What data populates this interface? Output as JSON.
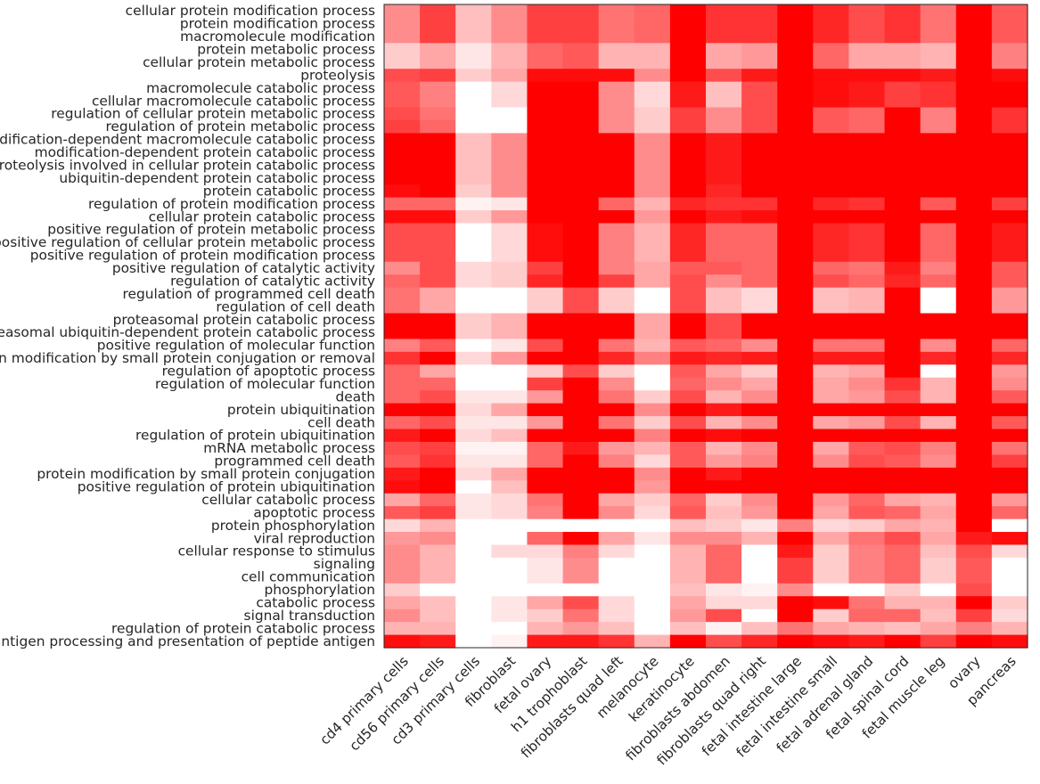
{
  "chart_data": {
    "type": "heatmap",
    "color_scale": {
      "low": "#ffffff",
      "high": "#ff0000"
    },
    "value_range": [
      0,
      1
    ],
    "grid": false,
    "columns": [
      "cd4 primary cells",
      "cd56 primary cells",
      "cd3 primary cells",
      "fibroblast",
      "fetal ovary",
      "h1 trophoblast",
      "fibroblasts quad left",
      "melanocyte",
      "keratinocyte",
      "fibroblasts abdomen",
      "fibroblasts quad right",
      "fetal intestine large",
      "fetal intestine small",
      "fetal adrenal gland",
      "fetal spinal cord",
      "fetal muscle leg",
      "ovary",
      "pancreas"
    ],
    "rows": [
      "cellular protein modification process",
      "protein modification process",
      "macromolecule modification",
      "protein metabolic process",
      "cellular protein metabolic process",
      "proteolysis",
      "macromolecule catabolic process",
      "cellular macromolecule catabolic process",
      "regulation of cellular protein metabolic process",
      "regulation of protein metabolic process",
      "modification-dependent macromolecule catabolic process",
      "modification-dependent protein catabolic process",
      "proteolysis involved in cellular protein catabolic process",
      "ubiquitin-dependent protein catabolic process",
      "protein catabolic process",
      "regulation of protein modification process",
      "cellular protein catabolic process",
      "positive regulation of protein metabolic process",
      "positive regulation of cellular protein metabolic process",
      "positive regulation of protein modification process",
      "positive regulation of catalytic activity",
      "regulation of catalytic activity",
      "regulation of programmed cell death",
      "regulation of cell death",
      "proteasomal protein catabolic process",
      "proteasomal ubiquitin-dependent protein catabolic process",
      "positive regulation of molecular function",
      "protein modification by small protein conjugation or removal",
      "regulation of apoptotic process",
      "regulation of molecular function",
      "death",
      "protein ubiquitination",
      "cell death",
      "regulation of protein ubiquitination",
      "mRNA metabolic process",
      "programmed cell death",
      "protein modification by small protein conjugation",
      "positive regulation of protein ubiquitination",
      "cellular catabolic process",
      "apoptotic process",
      "protein phosphorylation",
      "viral reproduction",
      "cellular response to stimulus",
      "signaling",
      "cell communication",
      "phosphorylation",
      "catabolic process",
      "signal transduction",
      "regulation of protein catabolic process",
      "antigen processing and presentation of peptide antigen"
    ],
    "values": [
      [
        0.45,
        0.75,
        0.25,
        0.45,
        0.75,
        0.75,
        0.55,
        0.6,
        1,
        0.8,
        0.8,
        1,
        0.85,
        0.7,
        0.8,
        0.55,
        1,
        0.65
      ],
      [
        0.45,
        0.75,
        0.25,
        0.45,
        0.75,
        0.75,
        0.55,
        0.6,
        1,
        0.8,
        0.8,
        1,
        0.85,
        0.7,
        0.8,
        0.55,
        1,
        0.65
      ],
      [
        0.45,
        0.75,
        0.25,
        0.45,
        0.75,
        0.75,
        0.55,
        0.6,
        1,
        0.8,
        0.8,
        1,
        0.85,
        0.7,
        0.8,
        0.55,
        1,
        0.65
      ],
      [
        0.2,
        0.35,
        0.1,
        0.3,
        0.6,
        0.65,
        0.3,
        0.3,
        1,
        0.35,
        0.4,
        1,
        0.6,
        0.35,
        0.35,
        0.3,
        1,
        0.5
      ],
      [
        0.2,
        0.35,
        0.1,
        0.3,
        0.6,
        0.65,
        0.3,
        0.3,
        1,
        0.35,
        0.4,
        1,
        0.6,
        0.35,
        0.35,
        0.3,
        1,
        0.5
      ],
      [
        0.7,
        0.75,
        0.2,
        0.35,
        0.95,
        0.95,
        0.95,
        0.45,
        1,
        0.7,
        0.9,
        1,
        0.95,
        0.95,
        0.95,
        0.9,
        1,
        0.95
      ],
      [
        0.65,
        0.5,
        0,
        0.15,
        1,
        1,
        0.45,
        0.15,
        0.9,
        0.25,
        0.7,
        1,
        0.95,
        0.9,
        0.75,
        0.8,
        1,
        1
      ],
      [
        0.65,
        0.5,
        0,
        0.15,
        1,
        1,
        0.45,
        0.15,
        0.9,
        0.25,
        0.7,
        1,
        0.95,
        0.9,
        0.75,
        0.8,
        1,
        1
      ],
      [
        0.7,
        0.55,
        0,
        0,
        1,
        1,
        0.45,
        0.2,
        0.75,
        0.45,
        0.7,
        1,
        0.65,
        0.6,
        1,
        0.5,
        1,
        0.8
      ],
      [
        0.75,
        0.6,
        0,
        0,
        1,
        1,
        0.45,
        0.2,
        0.75,
        0.45,
        0.7,
        1,
        0.65,
        0.6,
        1,
        0.5,
        1,
        0.8
      ],
      [
        1,
        1,
        0.25,
        0.45,
        1,
        1,
        1,
        0.45,
        1,
        0.9,
        1,
        1,
        1,
        1,
        1,
        1,
        1,
        1
      ],
      [
        1,
        1,
        0.25,
        0.45,
        1,
        1,
        1,
        0.45,
        1,
        0.9,
        1,
        1,
        1,
        1,
        1,
        1,
        1,
        1
      ],
      [
        1,
        1,
        0.25,
        0.45,
        1,
        1,
        1,
        0.45,
        1,
        0.9,
        1,
        1,
        1,
        1,
        1,
        1,
        1,
        1
      ],
      [
        1,
        1,
        0.25,
        0.45,
        1,
        1,
        1,
        0.45,
        1,
        0.9,
        1,
        1,
        1,
        1,
        1,
        1,
        1,
        1
      ],
      [
        0.95,
        1,
        0.2,
        0.45,
        1,
        1,
        1,
        0.45,
        1,
        0.85,
        1,
        1,
        1,
        1,
        1,
        1,
        1,
        1
      ],
      [
        0.6,
        0.6,
        0.05,
        0.1,
        1,
        1,
        0.6,
        0.3,
        0.85,
        0.8,
        0.8,
        1,
        0.85,
        0.8,
        1,
        0.65,
        1,
        0.75
      ],
      [
        0.95,
        0.95,
        0.2,
        0.4,
        1,
        1,
        1,
        0.4,
        1,
        0.9,
        0.95,
        1,
        1,
        1,
        1,
        1,
        1,
        1
      ],
      [
        0.7,
        0.7,
        0,
        0.15,
        0.95,
        1,
        0.5,
        0.3,
        0.85,
        0.6,
        0.6,
        1,
        0.85,
        0.8,
        1,
        0.6,
        1,
        0.9
      ],
      [
        0.7,
        0.7,
        0,
        0.15,
        0.95,
        1,
        0.5,
        0.3,
        0.85,
        0.6,
        0.6,
        1,
        0.85,
        0.8,
        1,
        0.6,
        1,
        0.9
      ],
      [
        0.7,
        0.7,
        0,
        0.15,
        0.95,
        1,
        0.5,
        0.3,
        0.85,
        0.6,
        0.6,
        1,
        0.85,
        0.8,
        1,
        0.6,
        1,
        0.9
      ],
      [
        0.45,
        0.7,
        0.15,
        0.2,
        0.75,
        1,
        0.5,
        0.35,
        0.65,
        0.65,
        0.6,
        1,
        0.6,
        0.55,
        0.9,
        0.5,
        1,
        0.65
      ],
      [
        0.6,
        0.7,
        0.15,
        0.2,
        0.85,
        1,
        0.75,
        0.35,
        0.7,
        0.45,
        0.6,
        1,
        0.7,
        0.6,
        0.85,
        0.6,
        1,
        0.65
      ],
      [
        0.55,
        0.35,
        0,
        0,
        0.2,
        0.7,
        0.2,
        0,
        0.7,
        0.25,
        0.15,
        1,
        0.25,
        0.3,
        1,
        0,
        1,
        0.4
      ],
      [
        0.55,
        0.35,
        0,
        0,
        0.2,
        0.7,
        0.2,
        0,
        0.7,
        0.25,
        0.15,
        1,
        0.25,
        0.3,
        1,
        0,
        1,
        0.4
      ],
      [
        1,
        1,
        0.2,
        0.3,
        1,
        1,
        1,
        0.35,
        1,
        0.7,
        1,
        1,
        1,
        1,
        1,
        1,
        1,
        1
      ],
      [
        1,
        1,
        0.2,
        0.3,
        1,
        1,
        1,
        0.35,
        1,
        0.7,
        1,
        1,
        1,
        1,
        1,
        1,
        1,
        1
      ],
      [
        0.5,
        0.65,
        0,
        0.1,
        0.7,
        1,
        0.55,
        0.3,
        0.65,
        0.6,
        0.45,
        1,
        0.55,
        0.55,
        1,
        0.45,
        1,
        0.6
      ],
      [
        0.8,
        1,
        0.15,
        0.4,
        1,
        1,
        0.85,
        0.5,
        0.9,
        0.85,
        0.9,
        1,
        0.9,
        0.9,
        1,
        0.85,
        1,
        0.85
      ],
      [
        0.6,
        0.35,
        0,
        0,
        0.2,
        0.7,
        0.2,
        0,
        0.65,
        0.35,
        0.2,
        1,
        0.3,
        0.35,
        1,
        0,
        1,
        0.4
      ],
      [
        0.6,
        0.6,
        0,
        0,
        0.75,
        1,
        0.45,
        0,
        0.6,
        0.45,
        0.35,
        1,
        0.35,
        0.45,
        0.8,
        0.3,
        1,
        0.45
      ],
      [
        0.6,
        0.7,
        0.1,
        0.1,
        0.4,
        1,
        0.55,
        0.2,
        0.7,
        0.3,
        0.45,
        1,
        0.35,
        0.4,
        0.7,
        0.3,
        1,
        0.65
      ],
      [
        1,
        1,
        0.15,
        0.35,
        1,
        1,
        1,
        0.45,
        1,
        0.9,
        1,
        1,
        1,
        1,
        1,
        1,
        1,
        1
      ],
      [
        0.6,
        0.7,
        0.1,
        0.1,
        0.4,
        1,
        0.55,
        0.2,
        0.7,
        0.3,
        0.45,
        1,
        0.35,
        0.4,
        0.7,
        0.3,
        1,
        0.65
      ],
      [
        0.9,
        1,
        0.15,
        0.25,
        1,
        1,
        1,
        0.5,
        1,
        0.95,
        1,
        1,
        1,
        1,
        1,
        1,
        1,
        1
      ],
      [
        0.7,
        0.75,
        0.05,
        0.05,
        0.6,
        0.9,
        0.4,
        0.3,
        0.65,
        0.3,
        0.45,
        1,
        0.35,
        0.65,
        0.7,
        0.5,
        1,
        0.55
      ],
      [
        0.65,
        0.8,
        0.1,
        0.1,
        0.6,
        1,
        0.5,
        0.15,
        0.65,
        0.4,
        0.5,
        1,
        0.45,
        0.7,
        0.65,
        0.45,
        1,
        0.75
      ],
      [
        0.9,
        1,
        0.15,
        0.35,
        1,
        1,
        1,
        0.45,
        1,
        0.9,
        1,
        1,
        1,
        1,
        1,
        1,
        1,
        1
      ],
      [
        0.95,
        1,
        0,
        0.25,
        1,
        1,
        1,
        0.4,
        1,
        1,
        1,
        1,
        1,
        1,
        1,
        1,
        1,
        1
      ],
      [
        0.35,
        0.6,
        0.1,
        0.15,
        0.55,
        1,
        0.35,
        0.2,
        0.6,
        0.2,
        0.45,
        1,
        0.4,
        0.6,
        0.35,
        0.3,
        1,
        0.4
      ],
      [
        0.65,
        0.75,
        0.1,
        0.15,
        0.5,
        1,
        0.45,
        0.15,
        0.65,
        0.25,
        0.4,
        1,
        0.35,
        0.65,
        0.6,
        0.35,
        1,
        0.6
      ],
      [
        0.15,
        0.3,
        0,
        0,
        0,
        0,
        0,
        0,
        0.25,
        0.2,
        0.1,
        0.5,
        0.15,
        0.2,
        0.35,
        0.3,
        1,
        0
      ],
      [
        0.4,
        0.45,
        0,
        0,
        0.6,
        1,
        0.35,
        0.1,
        0.45,
        0.45,
        0.3,
        1,
        0.35,
        0.55,
        0.7,
        0.35,
        0.9,
        0.95
      ],
      [
        0.45,
        0.3,
        0,
        0.15,
        0.15,
        0.5,
        0.15,
        0,
        0.3,
        0.6,
        0,
        0.9,
        0.2,
        0.5,
        0.6,
        0.25,
        0.7,
        0.15
      ],
      [
        0.45,
        0.3,
        0,
        0,
        0.1,
        0.45,
        0,
        0,
        0.3,
        0.6,
        0,
        0.75,
        0.2,
        0.5,
        0.6,
        0.2,
        0.65,
        0
      ],
      [
        0.45,
        0.3,
        0,
        0,
        0.1,
        0.45,
        0,
        0,
        0.3,
        0.6,
        0,
        0.75,
        0.2,
        0.5,
        0.6,
        0.2,
        0.65,
        0
      ],
      [
        0.2,
        0,
        0,
        0,
        0,
        0,
        0,
        0,
        0.25,
        0.1,
        0.05,
        0.45,
        0,
        0,
        0.2,
        0,
        0.7,
        0
      ],
      [
        0.35,
        0.25,
        0,
        0.1,
        0.35,
        0.7,
        0.15,
        0,
        0.35,
        0.15,
        0.15,
        1,
        0.95,
        0.55,
        0.3,
        0.3,
        1,
        0.2
      ],
      [
        0.45,
        0.25,
        0,
        0.1,
        0.2,
        0.55,
        0.15,
        0,
        0.4,
        0.7,
        0,
        1,
        0.2,
        0.6,
        0.6,
        0.25,
        0.75,
        0.15
      ],
      [
        0.3,
        0.3,
        0,
        0,
        0.3,
        0.4,
        0.25,
        0,
        0.25,
        0.05,
        0.25,
        0.55,
        0.35,
        0.3,
        0.25,
        0.35,
        0.5,
        0.3
      ],
      [
        0.95,
        0.9,
        0,
        0.05,
        0.9,
        0.9,
        0.8,
        0.3,
        1,
        0.7,
        0.85,
        1,
        0.95,
        0.9,
        1,
        0.75,
        1,
        0.95
      ]
    ]
  }
}
